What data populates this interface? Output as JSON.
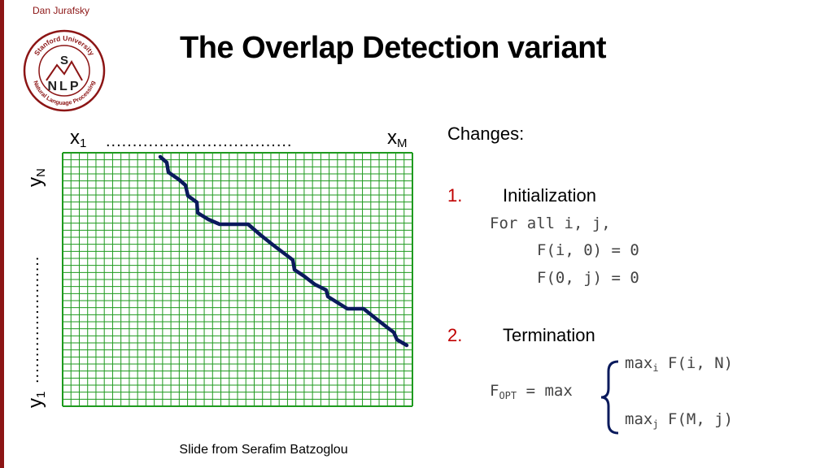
{
  "header": {
    "author": "Dan Jurafsky",
    "title": "The Overlap Detection variant",
    "logo": {
      "icon": "stanford-nlp-logo-icon",
      "top_text": "Stanford University",
      "bottom_text": "Natural Language Processing",
      "letters": "S N L P",
      "color": "#8c1515"
    }
  },
  "diagram": {
    "x_start": "x",
    "x_start_sub": "1",
    "x_dots": "...................................",
    "x_end": "x",
    "x_end_sub": "M",
    "y_end": "y",
    "y_end_sub": "N",
    "y_dots": "........................",
    "y_start": "y",
    "y_start_sub": "1",
    "grid_color": "#1e9a1e",
    "path_color": "#0a1a5c"
  },
  "content": {
    "changes_label": "Changes:",
    "item1_num": "1.",
    "item1_label": "Initialization",
    "init_line1": "For all i, j,",
    "init_line2": "F(i, 0) = 0",
    "init_line3": "F(0, j) = 0",
    "item2_num": "2.",
    "item2_label": "Termination",
    "term_max_i": "max",
    "term_max_i_sub": "i",
    "term_max_i_expr": " F(i, N)",
    "term_fopt": "F",
    "term_fopt_sub": "OPT",
    "term_fopt_expr": " = max",
    "term_max_j": "max",
    "term_max_j_sub": "j",
    "term_max_j_expr": " F(M, j)"
  },
  "footer": {
    "credit": "Slide from Serafim Batzoglou"
  }
}
